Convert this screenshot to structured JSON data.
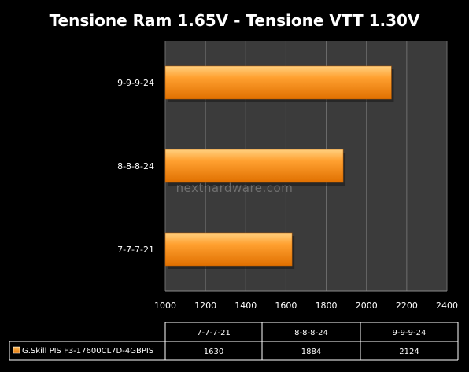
{
  "chart_data": {
    "type": "bar",
    "orientation": "horizontal",
    "title": "Tensione Ram 1.65V - Tensione VTT 1.30V",
    "categories": [
      "7-7-7-21",
      "8-8-8-24",
      "9-9-9-24"
    ],
    "series": [
      {
        "name": "G.Skill PIS F3-17600CL7D-4GBPIS",
        "values": [
          1630,
          1884,
          2124
        ],
        "color": "#ff9a1e"
      }
    ],
    "xlim": [
      1000,
      2400
    ],
    "x_ticks": [
      "1000",
      "1200",
      "1400",
      "1600",
      "1800",
      "2000",
      "2200",
      "2400"
    ],
    "grid": true,
    "plot_background": "#3b3b3b",
    "data_table": true
  },
  "watermark": "nexthardware.com"
}
